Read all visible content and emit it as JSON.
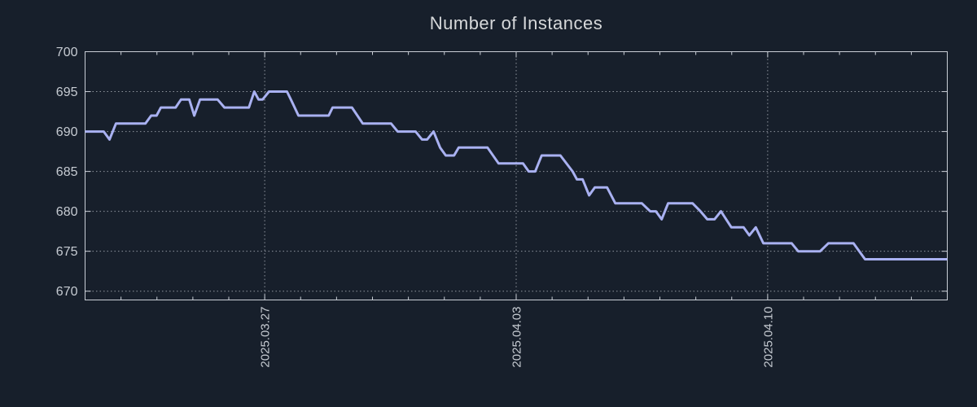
{
  "window": {
    "background_color": "#171f2b"
  },
  "chart_data": {
    "type": "line",
    "title": "Number of Instances",
    "xlabel": "",
    "ylabel": "",
    "legend": "none",
    "grid": "dotted",
    "ylim": [
      668.9,
      700
    ],
    "y_ticks": [
      700,
      695,
      690,
      685,
      680,
      675,
      670
    ],
    "x_axis_unit": "days from first sample",
    "x_range_days": [
      0,
      24
    ],
    "x_minor_tick_every_days": 1,
    "x_major_ticks": [
      {
        "day": 5,
        "label": "2025.03.27"
      },
      {
        "day": 12,
        "label": "2025.04.03"
      },
      {
        "day": 19,
        "label": "2025.04.10"
      }
    ],
    "colors": {
      "background": "#171f2b",
      "axis_border": "#c9ced6",
      "grid": "#8f959e",
      "tick_label": "#c6cbd2",
      "title": "#d6d8da",
      "line": "#a9b1f1"
    },
    "series": [
      {
        "name": "Number of Instances",
        "color": "#a9b1f1",
        "points": [
          [
            0.0,
            690
          ],
          [
            0.52,
            690
          ],
          [
            0.68,
            689
          ],
          [
            0.86,
            691
          ],
          [
            1.68,
            691
          ],
          [
            1.84,
            692
          ],
          [
            1.99,
            692
          ],
          [
            2.11,
            693
          ],
          [
            2.52,
            693
          ],
          [
            2.67,
            694
          ],
          [
            2.9,
            694
          ],
          [
            3.04,
            692
          ],
          [
            3.2,
            694
          ],
          [
            3.69,
            694
          ],
          [
            3.88,
            693
          ],
          [
            4.56,
            693
          ],
          [
            4.71,
            695
          ],
          [
            4.83,
            694
          ],
          [
            4.94,
            694
          ],
          [
            5.12,
            695
          ],
          [
            5.62,
            695
          ],
          [
            5.73,
            694
          ],
          [
            5.94,
            692
          ],
          [
            6.78,
            692
          ],
          [
            6.89,
            693
          ],
          [
            7.43,
            693
          ],
          [
            7.73,
            691
          ],
          [
            8.52,
            691
          ],
          [
            8.7,
            690
          ],
          [
            9.2,
            690
          ],
          [
            9.38,
            689
          ],
          [
            9.52,
            689
          ],
          [
            9.7,
            690
          ],
          [
            9.88,
            688
          ],
          [
            10.04,
            687
          ],
          [
            10.27,
            687
          ],
          [
            10.4,
            688
          ],
          [
            11.2,
            688
          ],
          [
            11.51,
            686
          ],
          [
            12.19,
            686
          ],
          [
            12.35,
            685
          ],
          [
            12.53,
            685
          ],
          [
            12.71,
            687
          ],
          [
            13.23,
            687
          ],
          [
            13.57,
            685
          ],
          [
            13.69,
            684
          ],
          [
            13.85,
            684
          ],
          [
            14.03,
            682
          ],
          [
            14.19,
            683
          ],
          [
            14.53,
            683
          ],
          [
            14.76,
            681
          ],
          [
            15.5,
            681
          ],
          [
            15.73,
            680
          ],
          [
            15.89,
            680
          ],
          [
            16.05,
            679
          ],
          [
            16.23,
            681
          ],
          [
            16.91,
            681
          ],
          [
            17.13,
            680
          ],
          [
            17.32,
            679
          ],
          [
            17.52,
            679
          ],
          [
            17.7,
            680
          ],
          [
            17.99,
            678
          ],
          [
            18.33,
            678
          ],
          [
            18.49,
            677
          ],
          [
            18.67,
            678
          ],
          [
            18.88,
            676
          ],
          [
            19.67,
            676
          ],
          [
            19.85,
            675
          ],
          [
            20.46,
            675
          ],
          [
            20.69,
            676
          ],
          [
            21.39,
            676
          ],
          [
            21.71,
            674
          ],
          [
            24.0,
            674
          ]
        ]
      }
    ]
  }
}
